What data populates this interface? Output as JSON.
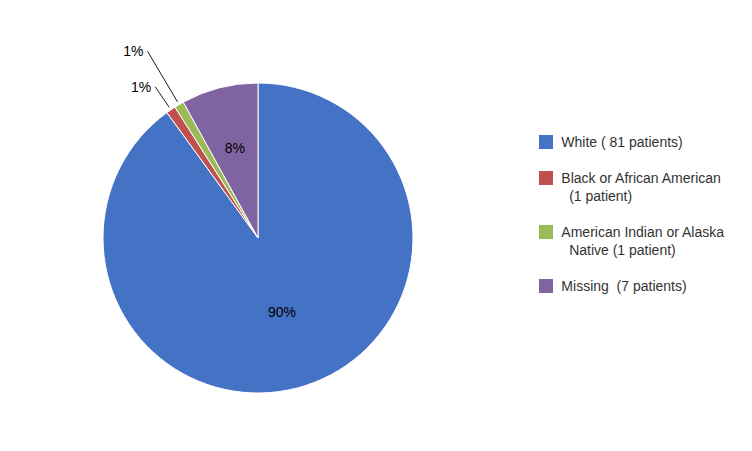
{
  "chart_data": {
    "type": "pie",
    "categories": [
      "White ( 81 patients)",
      "Black or African American\n  (1 patient)",
      "American Indian or Alaska\n  Native (1 patient)",
      "Missing  (7 patients)"
    ],
    "values": [
      90,
      1,
      1,
      8
    ],
    "value_labels": [
      "90%",
      "1%",
      "1%",
      "8%"
    ],
    "colors": [
      "#4472C4",
      "#C0504D",
      "#9BBB59",
      "#8064A2"
    ],
    "data_labels": true,
    "legend": "right"
  }
}
